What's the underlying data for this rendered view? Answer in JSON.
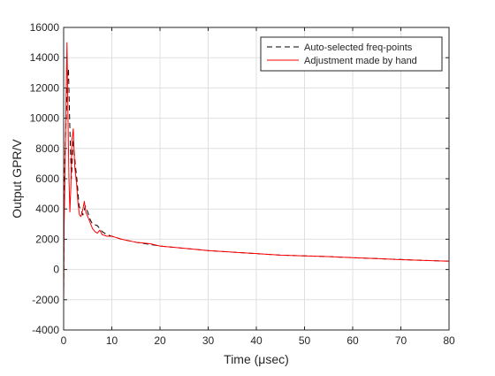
{
  "chart_data": {
    "type": "line",
    "title": "",
    "xlabel": "Time (μsec)",
    "ylabel": "Output GPR/V",
    "xlim": [
      0,
      80
    ],
    "ylim": [
      -4000,
      16000
    ],
    "x_ticks": [
      0,
      10,
      20,
      30,
      40,
      50,
      60,
      70,
      80
    ],
    "y_ticks": [
      -4000,
      -2000,
      0,
      2000,
      4000,
      6000,
      8000,
      10000,
      12000,
      14000,
      16000
    ],
    "x_tick_labels": [
      "0",
      "10",
      "20",
      "30",
      "40",
      "50",
      "60",
      "70",
      "80"
    ],
    "y_tick_labels": [
      "-4000",
      "-2000",
      "0",
      "2000",
      "4000",
      "6000",
      "8000",
      "10000",
      "12000",
      "14000",
      "16000"
    ],
    "grid": true,
    "legend_position": "top-right",
    "series": [
      {
        "name": "Auto-selected freq-points",
        "color": "#000000",
        "dashed": true,
        "x": [
          0,
          0.1,
          0.25,
          0.5,
          0.75,
          1.0,
          1.3,
          1.6,
          2.0,
          2.4,
          2.8,
          3.2,
          3.6,
          4.0,
          4.5,
          5.0,
          5.5,
          6.0,
          7.0,
          8.0,
          9.0,
          10,
          12,
          15,
          18,
          20,
          25,
          30,
          35,
          40,
          45,
          50,
          55,
          60,
          65,
          70,
          75,
          80
        ],
        "y": [
          -1800,
          4000,
          7500,
          9800,
          12000,
          13300,
          9200,
          6000,
          8600,
          7000,
          5800,
          4200,
          3900,
          3600,
          4200,
          3800,
          3300,
          3000,
          2900,
          2500,
          2300,
          2200,
          2000,
          1800,
          1650,
          1550,
          1400,
          1250,
          1150,
          1050,
          950,
          900,
          850,
          780,
          720,
          660,
          600,
          550
        ]
      },
      {
        "name": "Adjustment made by hand",
        "color": "#ff0000",
        "dashed": false,
        "x": [
          0,
          0.1,
          0.25,
          0.5,
          0.7,
          0.9,
          1.1,
          1.3,
          1.5,
          1.7,
          2.0,
          2.3,
          2.7,
          3.0,
          3.3,
          3.6,
          4.0,
          4.3,
          4.6,
          5.0,
          5.5,
          6.0,
          6.5,
          7.0,
          7.5,
          8.0,
          9.0,
          10,
          12,
          15,
          18,
          20,
          25,
          30,
          35,
          40,
          45,
          50,
          55,
          60,
          65,
          70,
          75,
          80
        ],
        "y": [
          -2400,
          3000,
          5500,
          11200,
          15000,
          10000,
          6000,
          3800,
          5500,
          8500,
          9300,
          6800,
          5600,
          4300,
          3600,
          3500,
          4000,
          4500,
          3800,
          3500,
          3100,
          2700,
          2500,
          2400,
          2600,
          2300,
          2200,
          2200,
          2000,
          1800,
          1700,
          1550,
          1400,
          1250,
          1150,
          1050,
          950,
          900,
          850,
          780,
          720,
          650,
          600,
          550
        ]
      }
    ]
  }
}
